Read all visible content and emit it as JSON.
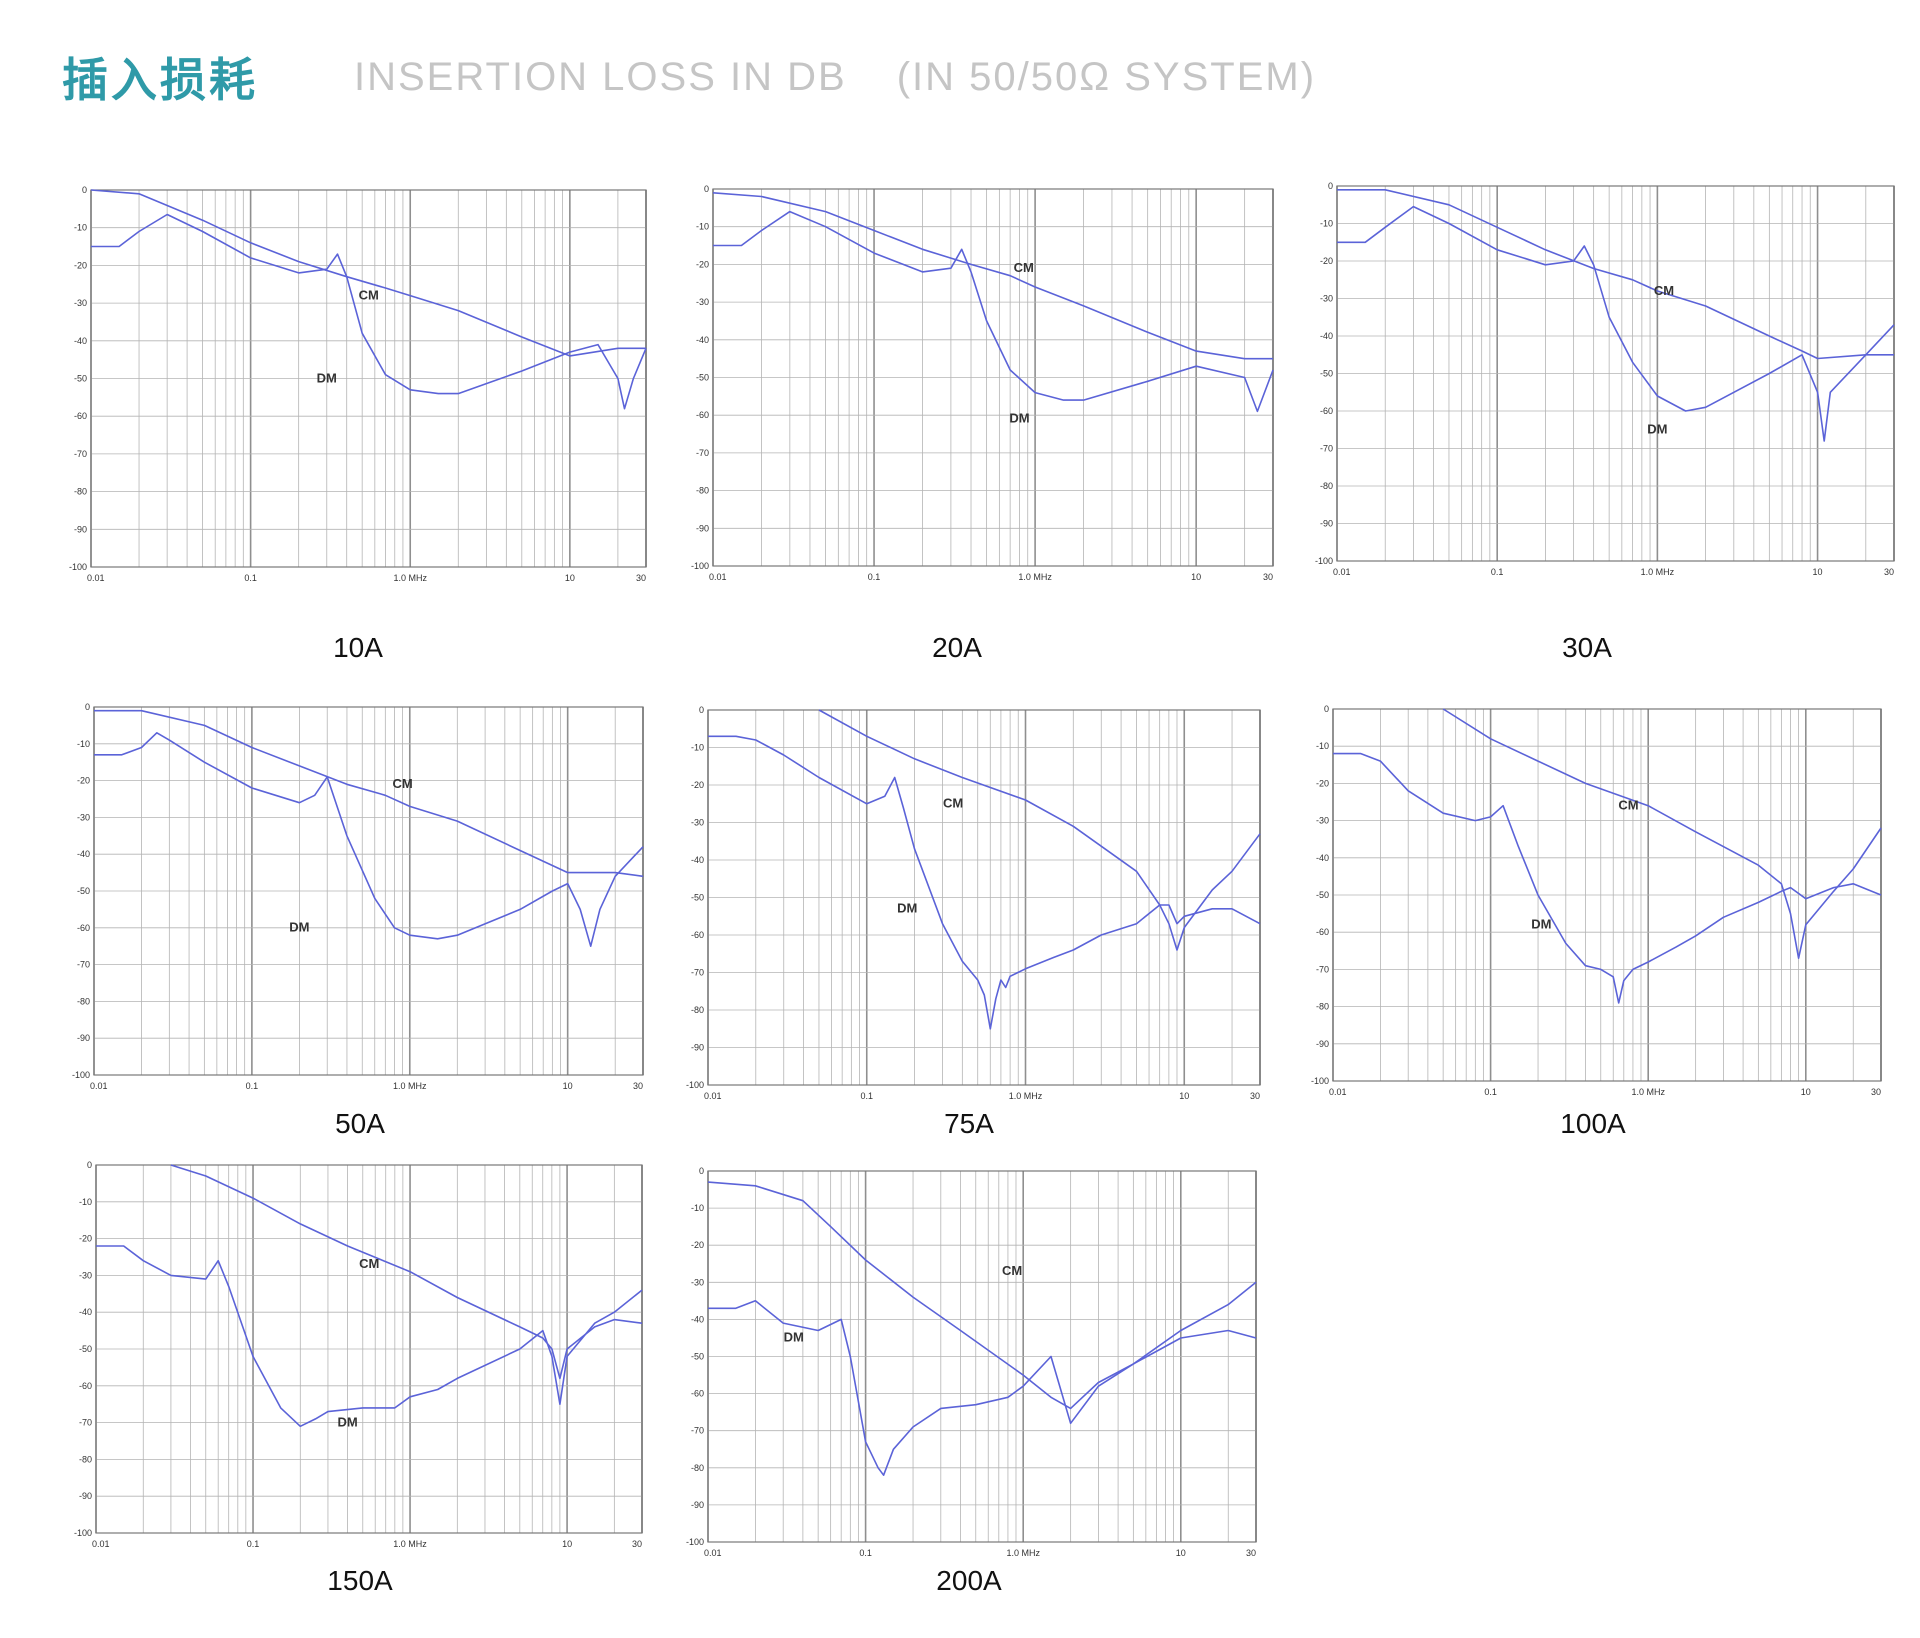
{
  "header": {
    "title_cn": "插入损耗",
    "title_en": "INSERTION LOSS IN DB",
    "title_en_suffix": "(IN 50/50Ω SYSTEM)"
  },
  "colors": {
    "title_accent": "#2f9aa8",
    "title_en": "#c5c5c5",
    "curve": "#5b63d8",
    "grid": "#b4b4b4"
  },
  "chart_data": [
    {
      "type": "line",
      "label": "10A",
      "xscale": "log",
      "xlim": [
        0.01,
        30
      ],
      "ylim": [
        -100,
        0
      ],
      "xticks": [
        "0.01",
        "0.1",
        "1.0 MHz",
        "10",
        "30"
      ],
      "yticks": [
        "0",
        "-10",
        "-20",
        "-30",
        "-40",
        "-50",
        "-60",
        "-70",
        "-80",
        "-90",
        "-100"
      ],
      "series": [
        {
          "name": "CM",
          "x": [
            0.01,
            0.02,
            0.05,
            0.1,
            0.2,
            0.4,
            0.7,
            1,
            2,
            5,
            10,
            20,
            30
          ],
          "y": [
            0,
            -1,
            -8,
            -14,
            -19,
            -23,
            -26,
            -28,
            -32,
            -39,
            -44,
            -42,
            -42
          ]
        },
        {
          "name": "DM",
          "x": [
            0.01,
            0.015,
            0.02,
            0.03,
            0.05,
            0.1,
            0.2,
            0.3,
            0.35,
            0.4,
            0.5,
            0.7,
            1,
            1.5,
            2,
            5,
            10,
            15,
            20,
            22,
            25,
            30
          ],
          "y": [
            -15,
            -15,
            -11,
            -6.5,
            -11,
            -18,
            -22,
            -21,
            -17,
            -23,
            -38,
            -49,
            -53,
            -54,
            -54,
            -48,
            -43,
            -41,
            -50,
            -58,
            -50,
            -42
          ]
        }
      ]
    },
    {
      "type": "line",
      "label": "20A",
      "xscale": "log",
      "xlim": [
        0.01,
        30
      ],
      "ylim": [
        -100,
        0
      ],
      "xticks": [
        "0.01",
        "0.1",
        "1.0 MHz",
        "10",
        "30"
      ],
      "yticks": [
        "0",
        "-10",
        "-20",
        "-30",
        "-40",
        "-50",
        "-60",
        "-70",
        "-80",
        "-90",
        "-100"
      ],
      "series": [
        {
          "name": "CM",
          "x": [
            0.01,
            0.02,
            0.05,
            0.1,
            0.2,
            0.4,
            0.7,
            1,
            2,
            5,
            10,
            20,
            30
          ],
          "y": [
            -1,
            -2,
            -6,
            -11,
            -16,
            -20,
            -23,
            -26,
            -31,
            -38,
            -43,
            -45,
            -45
          ]
        },
        {
          "name": "DM",
          "x": [
            0.01,
            0.015,
            0.02,
            0.03,
            0.05,
            0.1,
            0.2,
            0.3,
            0.35,
            0.4,
            0.5,
            0.7,
            1,
            1.5,
            2,
            5,
            10,
            20,
            24,
            30
          ],
          "y": [
            -15,
            -15,
            -11,
            -6,
            -10,
            -17,
            -22,
            -21,
            -16,
            -22,
            -35,
            -48,
            -54,
            -56,
            -56,
            -51,
            -47,
            -50,
            -59,
            -48
          ]
        }
      ]
    },
    {
      "type": "line",
      "label": "30A",
      "xscale": "log",
      "xlim": [
        0.01,
        30
      ],
      "ylim": [
        -100,
        0
      ],
      "xticks": [
        "0.01",
        "0.1",
        "1.0 MHz",
        "10",
        "30"
      ],
      "yticks": [
        "0",
        "-10",
        "-20",
        "-30",
        "-40",
        "-50",
        "-60",
        "-70",
        "-80",
        "-90",
        "-100"
      ],
      "series": [
        {
          "name": "CM",
          "x": [
            0.01,
            0.02,
            0.05,
            0.1,
            0.2,
            0.4,
            0.7,
            1,
            2,
            5,
            8,
            10,
            20,
            30
          ],
          "y": [
            -1,
            -1,
            -5,
            -11,
            -17,
            -22,
            -25,
            -28,
            -32,
            -40,
            -44,
            -46,
            -45,
            -45
          ]
        },
        {
          "name": "DM",
          "x": [
            0.01,
            0.015,
            0.02,
            0.03,
            0.05,
            0.1,
            0.2,
            0.3,
            0.35,
            0.4,
            0.5,
            0.7,
            1,
            1.5,
            2,
            5,
            8,
            10,
            11,
            12,
            20,
            30
          ],
          "y": [
            -15,
            -15,
            -11,
            -5.5,
            -10,
            -17,
            -21,
            -20,
            -16,
            -21,
            -35,
            -47,
            -56,
            -60,
            -59,
            -50,
            -45,
            -55,
            -68,
            -55,
            -45,
            -37
          ]
        }
      ]
    },
    {
      "type": "line",
      "label": "50A",
      "xscale": "log",
      "xlim": [
        0.01,
        30
      ],
      "ylim": [
        -100,
        0
      ],
      "xticks": [
        "0.01",
        "0.1",
        "1.0 MHz",
        "10",
        "30"
      ],
      "yticks": [
        "0",
        "-10",
        "-20",
        "-30",
        "-40",
        "-50",
        "-60",
        "-70",
        "-80",
        "-90",
        "-100"
      ],
      "series": [
        {
          "name": "CM",
          "x": [
            0.01,
            0.02,
            0.05,
            0.1,
            0.2,
            0.4,
            0.7,
            1,
            2,
            5,
            10,
            20,
            30
          ],
          "y": [
            -1,
            -1,
            -5,
            -11,
            -16,
            -21,
            -24,
            -27,
            -31,
            -39,
            -45,
            -45,
            -46
          ]
        },
        {
          "name": "DM",
          "x": [
            0.01,
            0.015,
            0.02,
            0.025,
            0.03,
            0.05,
            0.1,
            0.2,
            0.25,
            0.3,
            0.4,
            0.6,
            0.8,
            1,
            1.5,
            2,
            5,
            8,
            10,
            12,
            14,
            16,
            20,
            30
          ],
          "y": [
            -13,
            -13,
            -11,
            -7,
            -9,
            -15,
            -22,
            -26,
            -24,
            -19,
            -35,
            -52,
            -60,
            -62,
            -63,
            -62,
            -55,
            -50,
            -48,
            -55,
            -65,
            -55,
            -46,
            -38
          ]
        }
      ]
    },
    {
      "type": "line",
      "label": "75A",
      "xscale": "log",
      "xlim": [
        0.01,
        30
      ],
      "ylim": [
        -100,
        0
      ],
      "xticks": [
        "0.01",
        "0.1",
        "1.0 MHz",
        "10",
        "30"
      ],
      "yticks": [
        "0",
        "-10",
        "-20",
        "-30",
        "-40",
        "-50",
        "-60",
        "-70",
        "-80",
        "-90",
        "-100"
      ],
      "series": [
        {
          "name": "CM",
          "x": [
            0.05,
            0.1,
            0.2,
            0.4,
            1,
            2,
            5,
            7,
            8,
            9,
            10,
            15,
            20,
            30
          ],
          "y": [
            0,
            -7,
            -13,
            -18,
            -24,
            -31,
            -43,
            -52,
            -57,
            -64,
            -58,
            -48,
            -43,
            -33
          ]
        },
        {
          "name": "DM",
          "x": [
            0.01,
            0.015,
            0.02,
            0.03,
            0.05,
            0.1,
            0.13,
            0.15,
            0.17,
            0.2,
            0.3,
            0.4,
            0.5,
            0.55,
            0.6,
            0.65,
            0.7,
            0.75,
            0.8,
            1,
            1.5,
            2,
            3,
            5,
            7,
            8,
            9,
            10,
            15,
            20,
            30
          ],
          "y": [
            -7,
            -7,
            -8,
            -12,
            -18,
            -25,
            -23,
            -18,
            -26,
            -37,
            -57,
            -67,
            -72,
            -76,
            -85,
            -77,
            -72,
            -74,
            -71,
            -69,
            -66,
            -64,
            -60,
            -57,
            -52,
            -52,
            -57,
            -55,
            -53,
            -53,
            -57
          ]
        }
      ]
    },
    {
      "type": "line",
      "label": "100A",
      "xscale": "log",
      "xlim": [
        0.01,
        30
      ],
      "ylim": [
        -100,
        0
      ],
      "xticks": [
        "0.01",
        "0.1",
        "1.0 MHz",
        "10",
        "30"
      ],
      "yticks": [
        "0",
        "-10",
        "-20",
        "-30",
        "-40",
        "-50",
        "-60",
        "-70",
        "-80",
        "-90",
        "-100"
      ],
      "series": [
        {
          "name": "CM",
          "x": [
            0.05,
            0.1,
            0.2,
            0.4,
            1,
            2,
            5,
            7,
            8,
            9,
            10,
            15,
            20,
            30
          ],
          "y": [
            0,
            -8,
            -14,
            -20,
            -26,
            -33,
            -42,
            -47,
            -55,
            -67,
            -58,
            -49,
            -43,
            -32
          ]
        },
        {
          "name": "DM",
          "x": [
            0.01,
            0.015,
            0.02,
            0.03,
            0.05,
            0.08,
            0.1,
            0.12,
            0.15,
            0.2,
            0.3,
            0.4,
            0.5,
            0.6,
            0.65,
            0.7,
            0.8,
            1,
            1.5,
            2,
            3,
            5,
            7,
            8,
            10,
            15,
            20,
            30
          ],
          "y": [
            -12,
            -12,
            -14,
            -22,
            -28,
            -30,
            -29,
            -26,
            -37,
            -50,
            -63,
            -69,
            -70,
            -72,
            -79,
            -73,
            -70,
            -68,
            -64,
            -61,
            -56,
            -52,
            -49,
            -48,
            -51,
            -48,
            -47,
            -50
          ]
        }
      ]
    },
    {
      "type": "line",
      "label": "150A",
      "xscale": "log",
      "xlim": [
        0.01,
        30
      ],
      "ylim": [
        -100,
        0
      ],
      "xticks": [
        "0.01",
        "0.1",
        "1.0 MHz",
        "10",
        "30"
      ],
      "yticks": [
        "0",
        "-10",
        "-20",
        "-30",
        "-40",
        "-50",
        "-60",
        "-70",
        "-80",
        "-90",
        "-100"
      ],
      "series": [
        {
          "name": "CM",
          "x": [
            0.03,
            0.05,
            0.1,
            0.2,
            0.4,
            1,
            2,
            5,
            7,
            8,
            9,
            10,
            15,
            20,
            30
          ],
          "y": [
            0,
            -3,
            -9,
            -16,
            -22,
            -29,
            -36,
            -44,
            -47,
            -50,
            -58,
            -50,
            -44,
            -42,
            -43
          ]
        },
        {
          "name": "DM",
          "x": [
            0.01,
            0.015,
            0.02,
            0.03,
            0.05,
            0.06,
            0.07,
            0.1,
            0.15,
            0.2,
            0.25,
            0.3,
            0.5,
            0.8,
            1,
            1.5,
            2,
            5,
            7,
            8,
            9,
            10,
            15,
            20,
            30
          ],
          "y": [
            -22,
            -22,
            -26,
            -30,
            -31,
            -26,
            -33,
            -52,
            -66,
            -71,
            -69,
            -67,
            -66,
            -66,
            -63,
            -61,
            -58,
            -50,
            -45,
            -52,
            -65,
            -52,
            -43,
            -40,
            -34
          ]
        }
      ]
    },
    {
      "type": "line",
      "label": "200A",
      "xscale": "log",
      "xlim": [
        0.01,
        30
      ],
      "ylim": [
        -100,
        0
      ],
      "xticks": [
        "0.01",
        "0.1",
        "1.0 MHz",
        "10",
        "30"
      ],
      "yticks": [
        "0",
        "-10",
        "-20",
        "-30",
        "-40",
        "-50",
        "-60",
        "-70",
        "-80",
        "-90",
        "-100"
      ],
      "series": [
        {
          "name": "CM",
          "x": [
            0.01,
            0.02,
            0.04,
            0.06,
            0.1,
            0.2,
            0.4,
            1,
            1.5,
            2,
            3,
            5,
            10,
            20,
            30
          ],
          "y": [
            -3,
            -4,
            -8,
            -15,
            -24,
            -34,
            -43,
            -55,
            -61,
            -64,
            -57,
            -52,
            -45,
            -43,
            -45
          ]
        },
        {
          "name": "DM",
          "x": [
            0.01,
            0.015,
            0.02,
            0.03,
            0.05,
            0.07,
            0.08,
            0.1,
            0.12,
            0.13,
            0.15,
            0.2,
            0.3,
            0.5,
            0.8,
            1,
            1.5,
            2,
            3,
            5,
            10,
            20,
            30
          ],
          "y": [
            -37,
            -37,
            -35,
            -41,
            -43,
            -40,
            -50,
            -73,
            -80,
            -82,
            -75,
            -69,
            -64,
            -63,
            -61,
            -58,
            -50,
            -68,
            -58,
            -52,
            -43,
            -36,
            -30
          ]
        }
      ]
    }
  ]
}
